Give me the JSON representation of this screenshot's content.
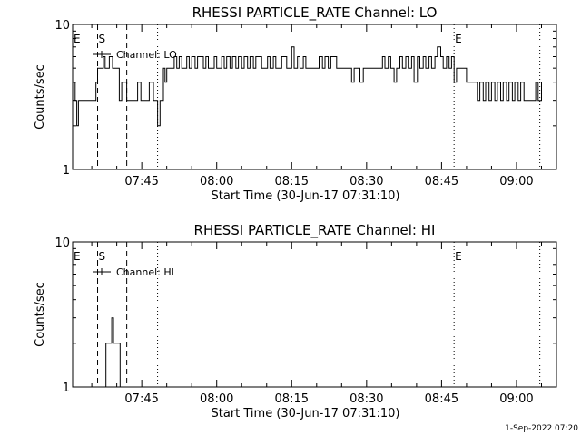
{
  "colors": {
    "background": "#ffffff",
    "foreground": "#000000"
  },
  "footer": "1-Sep-2022 07:20",
  "chart_data": [
    {
      "type": "line",
      "title": "RHESSI PARTICLE_RATE Channel: LO",
      "xlabel": "Start Time (30-Jun-17 07:31:10)",
      "ylabel": "Counts/sec",
      "yscale": "log",
      "ylim": [
        1,
        10
      ],
      "yticks": [
        1,
        10
      ],
      "ytick_labels": [
        "1",
        "10"
      ],
      "xlim": [
        "07:31:10",
        "09:08"
      ],
      "xticks": [
        "07:45",
        "08:00",
        "08:15",
        "08:30",
        "08:45",
        "09:00"
      ],
      "grid": false,
      "legend": {
        "position": "top-left",
        "entries": [
          "Channel: LO"
        ]
      },
      "markers": [
        {
          "label": "E",
          "time": "07:31:10",
          "style": "none"
        },
        {
          "label": "S",
          "time": "07:36:10",
          "style": "dashed"
        },
        {
          "label": "",
          "time": "07:42:00",
          "style": "dashed"
        },
        {
          "label": "",
          "time": "07:48:10",
          "style": "dotted"
        },
        {
          "label": "E",
          "time": "08:47:30",
          "style": "dotted"
        },
        {
          "label": "",
          "time": "09:04:40",
          "style": "dotted"
        }
      ],
      "series": [
        {
          "name": "Channel: LO",
          "x": [
            "07:31:10",
            "07:31:40",
            "07:32:00",
            "07:32:20",
            "07:32:40",
            "07:33:00",
            "07:35:50",
            "07:36:10",
            "07:37:20",
            "07:37:40",
            "07:38:30",
            "07:39:10",
            "07:40:00",
            "07:40:30",
            "07:41:00",
            "07:42:00",
            "07:43:00",
            "07:43:40",
            "07:44:10",
            "07:44:50",
            "07:45:20",
            "07:46:00",
            "07:46:30",
            "07:47:20",
            "07:47:50",
            "07:48:10",
            "07:48:40",
            "07:49:20",
            "07:49:40",
            "07:50:00",
            "07:51:00",
            "07:51:30",
            "07:52:00",
            "07:52:30",
            "07:53:00",
            "07:53:30",
            "07:54:00",
            "07:54:30",
            "07:55:00",
            "07:55:40",
            "07:56:10",
            "07:57:20",
            "07:57:50",
            "07:58:20",
            "07:59:00",
            "07:59:30",
            "08:00:00",
            "08:01:00",
            "08:01:30",
            "08:02:00",
            "08:02:40",
            "08:03:10",
            "08:03:50",
            "08:04:20",
            "08:05:00",
            "08:05:30",
            "08:06:10",
            "08:06:40",
            "08:07:20",
            "08:07:50",
            "08:09:00",
            "08:09:40",
            "08:10:10",
            "08:10:40",
            "08:11:20",
            "08:11:50",
            "08:13:00",
            "08:14:00",
            "08:15:00",
            "08:15:30",
            "08:16:10",
            "08:16:40",
            "08:17:20",
            "08:17:50",
            "08:18:30",
            "08:20:00",
            "08:20:30",
            "08:21:10",
            "08:21:40",
            "08:22:20",
            "08:22:50",
            "08:24:00",
            "08:25:00",
            "08:26:00",
            "08:27:00",
            "08:27:30",
            "08:28:10",
            "08:28:40",
            "08:29:20",
            "08:29:50",
            "08:30:30",
            "08:32:00",
            "08:32:30",
            "08:33:10",
            "08:33:40",
            "08:34:20",
            "08:34:50",
            "08:35:30",
            "08:36:00",
            "08:36:40",
            "08:37:10",
            "08:37:50",
            "08:38:20",
            "08:39:00",
            "08:39:30",
            "08:40:10",
            "08:40:40",
            "08:41:20",
            "08:41:50",
            "08:42:30",
            "08:43:00",
            "08:43:40",
            "08:44:10",
            "08:44:50",
            "08:45:20",
            "08:46:00",
            "08:46:30",
            "08:47:00",
            "08:47:30",
            "08:48:00",
            "08:49:00",
            "08:50:00",
            "08:51:00",
            "08:51:30",
            "08:52:10",
            "08:52:40",
            "08:53:20",
            "08:53:50",
            "08:54:30",
            "08:55:00",
            "08:55:40",
            "08:56:10",
            "08:56:50",
            "08:57:20",
            "08:58:00",
            "08:58:30",
            "08:59:10",
            "08:59:40",
            "09:00:20",
            "09:00:50",
            "09:01:30",
            "09:02:00",
            "09:02:40",
            "09:03:10",
            "09:03:50",
            "09:04:20",
            "09:05:00"
          ],
          "y": [
            4,
            3,
            2,
            3,
            3,
            3,
            4,
            5,
            6,
            5,
            6,
            5,
            5,
            3,
            4,
            3,
            3,
            3,
            4,
            3,
            3,
            3,
            4,
            3,
            3,
            2,
            3,
            5,
            4,
            5,
            5,
            6,
            5,
            6,
            5,
            5,
            6,
            5,
            6,
            5,
            6,
            5,
            6,
            5,
            5,
            6,
            5,
            6,
            5,
            6,
            5,
            6,
            5,
            6,
            5,
            6,
            5,
            6,
            5,
            6,
            5,
            5,
            6,
            5,
            6,
            5,
            6,
            5,
            7,
            5,
            6,
            5,
            6,
            5,
            5,
            5,
            6,
            5,
            6,
            5,
            6,
            5,
            5,
            5,
            4,
            5,
            5,
            4,
            5,
            5,
            5,
            5,
            5,
            6,
            5,
            6,
            5,
            4,
            5,
            6,
            5,
            6,
            5,
            6,
            4,
            6,
            5,
            6,
            5,
            6,
            5,
            6,
            7,
            6,
            5,
            6,
            5,
            6,
            4,
            5,
            5,
            4,
            4,
            4,
            3,
            4,
            3,
            4,
            3,
            4,
            3,
            4,
            3,
            4,
            3,
            4,
            3,
            4,
            3,
            4,
            3,
            3,
            3,
            3,
            4,
            3,
            4
          ]
        }
      ]
    },
    {
      "type": "line",
      "title": "RHESSI PARTICLE_RATE Channel: HI",
      "xlabel": "Start Time (30-Jun-17 07:31:10)",
      "ylabel": "Counts/sec",
      "yscale": "log",
      "ylim": [
        1,
        10
      ],
      "yticks": [
        1,
        10
      ],
      "ytick_labels": [
        "1",
        "10"
      ],
      "xlim": [
        "07:31:10",
        "09:08"
      ],
      "xticks": [
        "07:45",
        "08:00",
        "08:15",
        "08:30",
        "08:45",
        "09:00"
      ],
      "grid": false,
      "legend": {
        "position": "top-left",
        "entries": [
          "Channel: HI"
        ]
      },
      "markers": [
        {
          "label": "E",
          "time": "07:31:10",
          "style": "none"
        },
        {
          "label": "S",
          "time": "07:36:10",
          "style": "dashed"
        },
        {
          "label": "",
          "time": "07:42:00",
          "style": "dashed"
        },
        {
          "label": "",
          "time": "07:48:10",
          "style": "dotted"
        },
        {
          "label": "E",
          "time": "08:47:30",
          "style": "dotted"
        },
        {
          "label": "",
          "time": "09:04:40",
          "style": "dotted"
        }
      ],
      "series": [
        {
          "name": "Channel: HI",
          "x": [
            "07:37:40",
            "07:37:50",
            "07:38:40",
            "07:39:00",
            "07:39:20",
            "07:39:40",
            "07:40:30",
            "07:40:40"
          ],
          "y": [
            1,
            2,
            2,
            3,
            2,
            2,
            2,
            1
          ]
        }
      ]
    }
  ]
}
